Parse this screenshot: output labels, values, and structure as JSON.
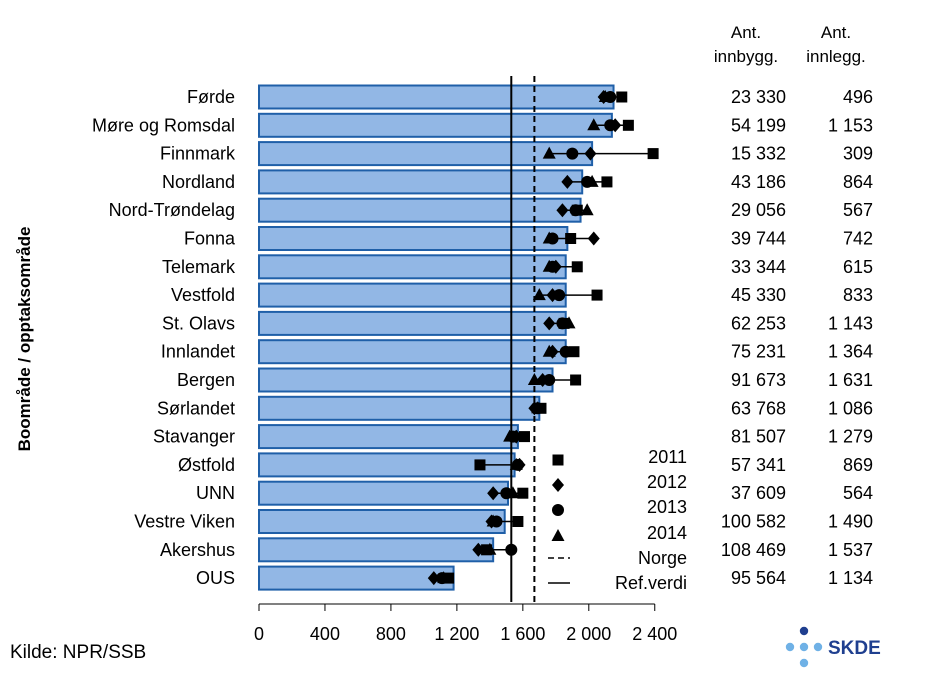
{
  "chart_data": {
    "type": "bar",
    "title": "",
    "xlabel": "",
    "ylabel": "Boområde / opptaksområde",
    "xlim": [
      0,
      2400
    ],
    "xticks": [
      0,
      400,
      800,
      1200,
      1600,
      2000,
      2400
    ],
    "xtick_labels": [
      "0",
      "400",
      "800",
      "1 200",
      "1 600",
      "2 000",
      "2 400"
    ],
    "categories": [
      "Førde",
      "Møre og Romsdal",
      "Finnmark",
      "Nordland",
      "Nord-Trøndelag",
      "Fonna",
      "Telemark",
      "Vestfold",
      "St. Olavs",
      "Innlandet",
      "Bergen",
      "Sørlandet",
      "Stavanger",
      "Østfold",
      "UNN",
      "Vestre Viken",
      "Akershus",
      "OUS"
    ],
    "values": [
      2150,
      2140,
      2020,
      1960,
      1950,
      1870,
      1860,
      1860,
      1860,
      1860,
      1780,
      1700,
      1570,
      1550,
      1510,
      1490,
      1420,
      1180
    ],
    "series": [
      {
        "name": "2011",
        "marker": "square",
        "values": [
          2200,
          2240,
          2390,
          2110,
          1930,
          1890,
          1930,
          2050,
          1850,
          1910,
          1920,
          1710,
          1610,
          1340,
          1600,
          1570,
          1380,
          1150
        ]
      },
      {
        "name": "2012",
        "marker": "diamond",
        "values": [
          2090,
          2160,
          2010,
          1870,
          1840,
          2030,
          1800,
          1780,
          1760,
          1780,
          1720,
          1670,
          1560,
          1580,
          1420,
          1410,
          1330,
          1060
        ]
      },
      {
        "name": "2013",
        "marker": "circle",
        "values": [
          2130,
          2130,
          1900,
          1990,
          1920,
          1780,
          1780,
          1820,
          1840,
          1860,
          1760,
          1690,
          1540,
          1570,
          1500,
          1440,
          1530,
          1110
        ]
      },
      {
        "name": "2014",
        "marker": "triangle",
        "values": [
          2100,
          2030,
          1760,
          2020,
          1990,
          1760,
          1760,
          1700,
          1880,
          1760,
          1670,
          1690,
          1520,
          1560,
          1540,
          1420,
          1400,
          1120
        ]
      }
    ],
    "norge": 1670,
    "ref_verdi": 1530,
    "legend": [
      "2011",
      "2012",
      "2013",
      "2014",
      "Norge",
      "Ref.verdi"
    ],
    "table_headers": {
      "innbygg_1": "Ant.",
      "innbygg_2": "innbygg.",
      "innlegg_1": "Ant.",
      "innlegg_2": "innlegg."
    },
    "innbyggere": [
      "23 330",
      "54 199",
      "15 332",
      "43 186",
      "29 056",
      "39 744",
      "33 344",
      "45 330",
      "62 253",
      "75 231",
      "91 673",
      "63 768",
      "81 507",
      "57 341",
      "37 609",
      "100 582",
      "108 469",
      "95 564"
    ],
    "innleggelser": [
      "496",
      "1 153",
      "309",
      "864",
      "567",
      "742",
      "615",
      "833",
      "1 143",
      "1 364",
      "1 631",
      "1 086",
      "1 279",
      "869",
      "564",
      "1 490",
      "1 537",
      "1 134"
    ],
    "colors": {
      "bar_fill": "#92b7e5",
      "bar_stroke": "#1f5fa8"
    }
  },
  "source": "Kilde: NPR/SSB",
  "logo": {
    "text": "SKDE",
    "dark": "#1f3f8f",
    "light": "#6fb1e6"
  }
}
